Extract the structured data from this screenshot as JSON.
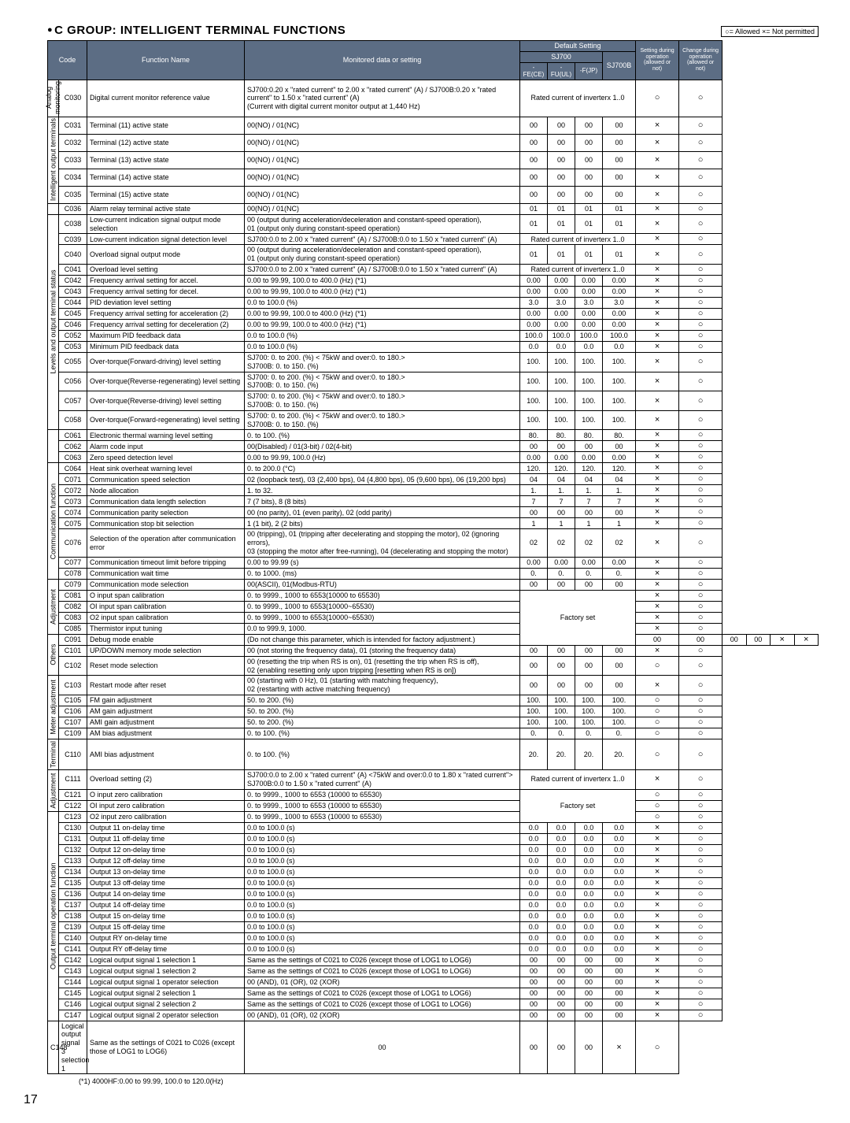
{
  "title": "C GROUP: INTELLIGENT TERMINAL FUNCTIONS",
  "legend": "○= Allowed  ×= Not permitted",
  "headers": {
    "code": "Code",
    "func": "Function Name",
    "mon": "Monitored data or setting",
    "defset": "Default Setting",
    "sj700": "SJ700",
    "sj700b": "SJ700B",
    "fece": "-FE(CE)",
    "fuul": "-FU(UL)",
    "fjp": "-F(JP)",
    "setting": "Setting during operation (allowed or not)",
    "change": "Change during operation (allowed or not)"
  },
  "categories": [
    {
      "label": "Analog<br>monitoring",
      "span": 1
    },
    {
      "label": "Intelligent output terminals",
      "span": 5
    },
    {
      "label": "",
      "span": 1
    },
    {
      "label": "Levels and output terminal status",
      "span": 15
    },
    {
      "label": "",
      "span": 3
    },
    {
      "label": "Communication function",
      "span": 9
    },
    {
      "label": "Adjustment",
      "span": 5
    },
    {
      "label": "Others",
      "span": 3
    },
    {
      "label": "Meter adjustment",
      "span": 5
    },
    {
      "label": "Terminal",
      "span": 1
    },
    {
      "label": "Adjustment",
      "span": 3
    },
    {
      "label": "Output terminal operation function",
      "span": 19
    }
  ],
  "rows": [
    {
      "code": "C030",
      "name": "Digital current monitor reference value",
      "mon": "SJ700:0.20 x \"rated current\" to 2.00 x \"rated current\" (A) / SJ700B:0.20 x \"rated current\" to 1.50 x \"rated current\" (A)\n(Current with digital current monitor output at 1,440 Hz)",
      "def": [
        "colspan:4",
        "Rated current of inverterx 1..0"
      ],
      "sj7b": "",
      "s": "○",
      "c": "○"
    },
    {
      "code": "C031",
      "name": "Terminal (11) active state",
      "mon": "00(NO) / 01(NC)",
      "def": [
        "00",
        "00",
        "00",
        "00"
      ],
      "s": "×",
      "c": "○"
    },
    {
      "code": "C032",
      "name": "Terminal (12) active state",
      "mon": "00(NO) / 01(NC)",
      "def": [
        "00",
        "00",
        "00",
        "00"
      ],
      "s": "×",
      "c": "○"
    },
    {
      "code": "C033",
      "name": "Terminal (13) active state",
      "mon": "00(NO) / 01(NC)",
      "def": [
        "00",
        "00",
        "00",
        "00"
      ],
      "s": "×",
      "c": "○"
    },
    {
      "code": "C034",
      "name": "Terminal (14) active state",
      "mon": "00(NO) / 01(NC)",
      "def": [
        "00",
        "00",
        "00",
        "00"
      ],
      "s": "×",
      "c": "○"
    },
    {
      "code": "C035",
      "name": "Terminal (15) active state",
      "mon": "00(NO) / 01(NC)",
      "def": [
        "00",
        "00",
        "00",
        "00"
      ],
      "s": "×",
      "c": "○"
    },
    {
      "code": "C036",
      "name": "Alarm relay terminal active state",
      "mon": "00(NO) / 01(NC)",
      "def": [
        "01",
        "01",
        "01",
        "01"
      ],
      "s": "×",
      "c": "○"
    },
    {
      "code": "C038",
      "name": "Low-current indication signal output mode selection",
      "mon": "00 (output during acceleration/deceleration and constant-speed operation),\n01 (output only during constant-speed operation)",
      "def": [
        "01",
        "01",
        "01",
        "01"
      ],
      "s": "×",
      "c": "○"
    },
    {
      "code": "C039",
      "name": "Low-current indication signal detection level",
      "mon": "SJ700:0.0 to 2.00 x \"rated current\" (A) / SJ700B:0.0 to 1.50 x \"rated current\" (A)",
      "def": [
        "colspan:4",
        "Rated current of inverterx 1..0"
      ],
      "s": "×",
      "c": "○"
    },
    {
      "code": "C040",
      "name": "Overload signal output mode",
      "mon": "00 (output during acceleration/deceleration and constant-speed operation),\n01 (output only during constant-speed operation)",
      "def": [
        "01",
        "01",
        "01",
        "01"
      ],
      "s": "×",
      "c": "○"
    },
    {
      "code": "C041",
      "name": "Overload level setting",
      "mon": "SJ700:0.0 to 2.00 x \"rated current\" (A) / SJ700B:0.0 to 1.50 x \"rated current\" (A)",
      "def": [
        "colspan:4",
        "Rated current of inverterx 1..0"
      ],
      "s": "×",
      "c": "○"
    },
    {
      "code": "C042",
      "name": "Frequency arrival setting for accel.",
      "mon": "0.00 to 99.99, 100.0 to 400.0 (Hz) (*1)",
      "def": [
        "0.00",
        "0.00",
        "0.00",
        "0.00"
      ],
      "s": "×",
      "c": "○"
    },
    {
      "code": "C043",
      "name": "Frequency arrival setting for decel.",
      "mon": "0.00 to 99.99, 100.0 to 400.0 (Hz) (*1)",
      "def": [
        "0.00",
        "0.00",
        "0.00",
        "0.00"
      ],
      "s": "×",
      "c": "○"
    },
    {
      "code": "C044",
      "name": "PID deviation level setting",
      "mon": "0.0 to 100.0 (%)",
      "def": [
        "3.0",
        "3.0",
        "3.0",
        "3.0"
      ],
      "s": "×",
      "c": "○"
    },
    {
      "code": "C045",
      "name": "Frequency arrival setting for acceleration (2)",
      "mon": "0.00 to 99.99, 100.0 to 400.0 (Hz) (*1)",
      "def": [
        "0.00",
        "0.00",
        "0.00",
        "0.00"
      ],
      "s": "×",
      "c": "○"
    },
    {
      "code": "C046",
      "name": "Frequency arrival setting for deceleration (2)",
      "mon": "0.00 to 99.99, 100.0 to 400.0 (Hz) (*1)",
      "def": [
        "0.00",
        "0.00",
        "0.00",
        "0.00"
      ],
      "s": "×",
      "c": "○"
    },
    {
      "code": "C052",
      "name": "Maximum PID feedback data",
      "mon": "0.0 to 100.0 (%)",
      "def": [
        "100.0",
        "100.0",
        "100.0",
        "100.0"
      ],
      "s": "×",
      "c": "○"
    },
    {
      "code": "C053",
      "name": "Minimum PID feedback data",
      "mon": "0.0 to 100.0 (%)",
      "def": [
        "0.0",
        "0.0",
        "0.0",
        "0.0"
      ],
      "s": "×",
      "c": "○"
    },
    {
      "code": "C055",
      "name": "Over-torque(Forward-driving) level setting",
      "mon": "SJ700: 0. to 200. (%) < 75kW and over:0. to 180.>\nSJ700B: 0. to 150. (%)",
      "def": [
        "100.",
        "100.",
        "100.",
        "100."
      ],
      "s": "×",
      "c": "○"
    },
    {
      "code": "C056",
      "name": "Over-torque(Reverse-regenerating) level setting",
      "mon": "SJ700: 0. to 200. (%) < 75kW and over:0. to 180.>\nSJ700B: 0. to 150. (%)",
      "def": [
        "100.",
        "100.",
        "100.",
        "100."
      ],
      "s": "×",
      "c": "○"
    },
    {
      "code": "C057",
      "name": "Over-torque(Reverse-driving) level setting",
      "mon": "SJ700: 0. to 200. (%) < 75kW and over:0. to 180.>\nSJ700B: 0. to 150. (%)",
      "def": [
        "100.",
        "100.",
        "100.",
        "100."
      ],
      "s": "×",
      "c": "○"
    },
    {
      "code": "C058",
      "name": "Over-torque(Forward-regenerating) level setting",
      "mon": "SJ700: 0. to 200. (%) < 75kW and over:0. to 180.>\nSJ700B: 0. to 150. (%)",
      "def": [
        "100.",
        "100.",
        "100.",
        "100."
      ],
      "s": "×",
      "c": "○"
    },
    {
      "code": "C061",
      "name": "Electronic thermal warning level setting",
      "mon": "0. to 100. (%)",
      "def": [
        "80.",
        "80.",
        "80.",
        "80."
      ],
      "s": "×",
      "c": "○"
    },
    {
      "code": "C062",
      "name": "Alarm code input",
      "mon": "00(Disabled) / 01(3-bit) / 02(4-bit)",
      "def": [
        "00",
        "00",
        "00",
        "00"
      ],
      "s": "×",
      "c": "○"
    },
    {
      "code": "C063",
      "name": "Zero speed detection level",
      "mon": "0.00 to 99.99, 100.0 (Hz)",
      "def": [
        "0.00",
        "0.00",
        "0.00",
        "0.00"
      ],
      "s": "×",
      "c": "○"
    },
    {
      "code": "C064",
      "name": "Heat sink overheat warning level",
      "mon": "0. to 200.0 (°C)",
      "def": [
        "120.",
        "120.",
        "120.",
        "120."
      ],
      "s": "×",
      "c": "○"
    },
    {
      "code": "C071",
      "name": "Communication speed selection",
      "mon": "02 (loopback test), 03 (2,400 bps), 04 (4,800 bps), 05 (9,600 bps), 06 (19,200 bps)",
      "def": [
        "04",
        "04",
        "04",
        "04"
      ],
      "s": "×",
      "c": "○"
    },
    {
      "code": "C072",
      "name": "Node allocation",
      "mon": "1. to 32.",
      "def": [
        "1.",
        "1.",
        "1.",
        "1."
      ],
      "s": "×",
      "c": "○"
    },
    {
      "code": "C073",
      "name": "Communication data length selection",
      "mon": "7 (7 bits), 8 (8 bits)",
      "def": [
        "7",
        "7",
        "7",
        "7"
      ],
      "s": "×",
      "c": "○"
    },
    {
      "code": "C074",
      "name": "Communication parity selection",
      "mon": "00 (no parity), 01 (even parity), 02 (odd parity)",
      "def": [
        "00",
        "00",
        "00",
        "00"
      ],
      "s": "×",
      "c": "○"
    },
    {
      "code": "C075",
      "name": "Communication stop bit selection",
      "mon": "1 (1 bit), 2 (2 bits)",
      "def": [
        "1",
        "1",
        "1",
        "1"
      ],
      "s": "×",
      "c": "○"
    },
    {
      "code": "C076",
      "name": "Selection of the operation after communication error",
      "mon": "00 (tripping), 01 (tripping after decelerating and stopping the motor), 02 (ignoring errors),\n03 (stopping the motor after free-running), 04 (decelerating and stopping the motor)",
      "def": [
        "02",
        "02",
        "02",
        "02"
      ],
      "s": "×",
      "c": "○"
    },
    {
      "code": "C077",
      "name": "Communication timeout limit before tripping",
      "mon": "0.00 to 99.99 (s)",
      "def": [
        "0.00",
        "0.00",
        "0.00",
        "0.00"
      ],
      "s": "×",
      "c": "○"
    },
    {
      "code": "C078",
      "name": "Communication wait time",
      "mon": "0. to 1000. (ms)",
      "def": [
        "0.",
        "0.",
        "0.",
        "0."
      ],
      "s": "×",
      "c": "○"
    },
    {
      "code": "C079",
      "name": "Communication mode selection",
      "mon": "00(ASCII), 01(Modbus-RTU)",
      "def": [
        "00",
        "00",
        "00",
        "00"
      ],
      "s": "×",
      "c": "○"
    },
    {
      "code": "C081",
      "name": "O input span calibration",
      "mon": "0. to 9999., 1000 to 6553(10000 to 65530)",
      "def": [
        "rowspan-group:5",
        "Factory set"
      ],
      "s": "×",
      "c": "○",
      "groupstart": true,
      "grouplen": 5,
      "grouptext": "Factory set"
    },
    {
      "code": "C082",
      "name": "OI input span calibration",
      "mon": "0. to 9999., 1000 to 6553(10000~65530)",
      "def": [
        "skip"
      ],
      "s": "×",
      "c": "○"
    },
    {
      "code": "C083",
      "name": "O2 input span calibration",
      "mon": "0. to 9999., 1000 to 6553(10000~65530)",
      "def": [
        "skip"
      ],
      "s": "×",
      "c": "○"
    },
    {
      "code": "C085",
      "name": "Thermistor input tuning",
      "mon": "0.0 to 999.9, 1000.",
      "def": [
        "skip"
      ],
      "s": "×",
      "c": "○"
    },
    {
      "code": "C091",
      "name": "Debug mode enable",
      "mon": "(Do not change this parameter, which is intended for factory adjustment.)",
      "def": [
        "00",
        "00",
        "00",
        "00"
      ],
      "s": "×",
      "c": "×"
    },
    {
      "code": "C101",
      "name": "UP/DOWN memory mode selection",
      "mon": "00 (not storing the frequency data), 01 (storing the frequency data)",
      "def": [
        "00",
        "00",
        "00",
        "00"
      ],
      "s": "×",
      "c": "○"
    },
    {
      "code": "C102",
      "name": "Reset mode selection",
      "mon": "00 (resetting the trip when RS is on), 01 (resetting the trip when RS is off),\n02 (enabling resetting only upon tripping [resetting when RS is on])",
      "def": [
        "00",
        "00",
        "00",
        "00"
      ],
      "s": "○",
      "c": "○"
    },
    {
      "code": "C103",
      "name": "Restart mode after reset",
      "mon": "00 (starting with 0 Hz), 01 (starting with matching frequency),\n02 (restarting with active matching frequency)",
      "def": [
        "00",
        "00",
        "00",
        "00"
      ],
      "s": "×",
      "c": "○"
    },
    {
      "code": "C105",
      "name": "FM gain adjustment",
      "mon": "50. to 200. (%)",
      "def": [
        "100.",
        "100.",
        "100.",
        "100."
      ],
      "s": "○",
      "c": "○"
    },
    {
      "code": "C106",
      "name": "AM gain adjustment",
      "mon": "50. to 200. (%)",
      "def": [
        "100.",
        "100.",
        "100.",
        "100."
      ],
      "s": "○",
      "c": "○"
    },
    {
      "code": "C107",
      "name": "AMI gain adjustment",
      "mon": "50. to 200. (%)",
      "def": [
        "100.",
        "100.",
        "100.",
        "100."
      ],
      "s": "○",
      "c": "○"
    },
    {
      "code": "C109",
      "name": "AM bias adjustment",
      "mon": "0. to 100. (%)",
      "def": [
        "0.",
        "0.",
        "0.",
        "0."
      ],
      "s": "○",
      "c": "○"
    },
    {
      "code": "C110",
      "name": "AMI bias adjustment",
      "mon": "0. to 100. (%)",
      "def": [
        "20.",
        "20.",
        "20.",
        "20."
      ],
      "s": "○",
      "c": "○"
    },
    {
      "code": "C111",
      "name": "Overload setting (2)",
      "mon": "SJ700:0.0 to 2.00 x \"rated current\" (A) <75kW and over:0.0 to 1.80 x \"rated current\">\nSJ700B:0.0 to 1.50 x \"rated current\" (A)",
      "def": [
        "colspan:4",
        "Rated current of inverterx 1..0"
      ],
      "s": "×",
      "c": "○"
    },
    {
      "code": "C121",
      "name": "O input zero calibration",
      "mon": "0. to 9999., 1000 to 6553 (10000 to 65530)",
      "def": [
        "rowspan-group:3"
      ],
      "s": "○",
      "c": "○",
      "groupstart": true,
      "grouplen": 3,
      "grouptext": "Factory set"
    },
    {
      "code": "C122",
      "name": "OI input zero calibration",
      "mon": "0. to 9999., 1000 to 6553 (10000 to 65530)",
      "def": [
        "skip"
      ],
      "s": "○",
      "c": "○"
    },
    {
      "code": "C123",
      "name": "O2 input zero calibration",
      "mon": "0. to 9999., 1000 to 6553 (10000 to 65530)",
      "def": [
        "skip"
      ],
      "s": "○",
      "c": "○"
    },
    {
      "code": "C130",
      "name": "Output 11 on-delay time",
      "mon": "0.0 to 100.0 (s)",
      "def": [
        "0.0",
        "0.0",
        "0.0",
        "0.0"
      ],
      "s": "×",
      "c": "○"
    },
    {
      "code": "C131",
      "name": "Output 11 off-delay time",
      "mon": "0.0 to 100.0 (s)",
      "def": [
        "0.0",
        "0.0",
        "0.0",
        "0.0"
      ],
      "s": "×",
      "c": "○"
    },
    {
      "code": "C132",
      "name": "Output 12 on-delay time",
      "mon": "0.0 to 100.0 (s)",
      "def": [
        "0.0",
        "0.0",
        "0.0",
        "0.0"
      ],
      "s": "×",
      "c": "○"
    },
    {
      "code": "C133",
      "name": "Output 12 off-delay time",
      "mon": "0.0 to 100.0 (s)",
      "def": [
        "0.0",
        "0.0",
        "0.0",
        "0.0"
      ],
      "s": "×",
      "c": "○"
    },
    {
      "code": "C134",
      "name": "Output 13 on-delay time",
      "mon": "0.0 to 100.0 (s)",
      "def": [
        "0.0",
        "0.0",
        "0.0",
        "0.0"
      ],
      "s": "×",
      "c": "○"
    },
    {
      "code": "C135",
      "name": "Output 13 off-delay time",
      "mon": "0.0 to 100.0 (s)",
      "def": [
        "0.0",
        "0.0",
        "0.0",
        "0.0"
      ],
      "s": "×",
      "c": "○"
    },
    {
      "code": "C136",
      "name": "Output 14 on-delay time",
      "mon": "0.0 to 100.0 (s)",
      "def": [
        "0.0",
        "0.0",
        "0.0",
        "0.0"
      ],
      "s": "×",
      "c": "○"
    },
    {
      "code": "C137",
      "name": "Output 14 off-delay time",
      "mon": "0.0 to 100.0 (s)",
      "def": [
        "0.0",
        "0.0",
        "0.0",
        "0.0"
      ],
      "s": "×",
      "c": "○"
    },
    {
      "code": "C138",
      "name": "Output 15 on-delay time",
      "mon": "0.0 to 100.0 (s)",
      "def": [
        "0.0",
        "0.0",
        "0.0",
        "0.0"
      ],
      "s": "×",
      "c": "○"
    },
    {
      "code": "C139",
      "name": "Output 15 off-delay time",
      "mon": "0.0 to 100.0 (s)",
      "def": [
        "0.0",
        "0.0",
        "0.0",
        "0.0"
      ],
      "s": "×",
      "c": "○"
    },
    {
      "code": "C140",
      "name": "Output RY on-delay time",
      "mon": "0.0 to 100.0 (s)",
      "def": [
        "0.0",
        "0.0",
        "0.0",
        "0.0"
      ],
      "s": "×",
      "c": "○"
    },
    {
      "code": "C141",
      "name": "Output RY off-delay time",
      "mon": "0.0 to 100.0 (s)",
      "def": [
        "0.0",
        "0.0",
        "0.0",
        "0.0"
      ],
      "s": "×",
      "c": "○"
    },
    {
      "code": "C142",
      "name": "Logical output signal 1 selection 1",
      "mon": "Same as the settings of C021 to C026 (except those of LOG1 to LOG6)",
      "def": [
        "00",
        "00",
        "00",
        "00"
      ],
      "s": "×",
      "c": "○"
    },
    {
      "code": "C143",
      "name": "Logical output signal 1 selection 2",
      "mon": "Same as the settings of C021 to C026 (except those of LOG1 to LOG6)",
      "def": [
        "00",
        "00",
        "00",
        "00"
      ],
      "s": "×",
      "c": "○"
    },
    {
      "code": "C144",
      "name": "Logical output signal 1 operator selection",
      "mon": "00 (AND), 01 (OR), 02 (XOR)",
      "def": [
        "00",
        "00",
        "00",
        "00"
      ],
      "s": "×",
      "c": "○"
    },
    {
      "code": "C145",
      "name": "Logical output signal 2 selection 1",
      "mon": "Same as the settings of C021 to C026 (except those of LOG1 to LOG6)",
      "def": [
        "00",
        "00",
        "00",
        "00"
      ],
      "s": "×",
      "c": "○"
    },
    {
      "code": "C146",
      "name": "Logical output signal 2 selection 2",
      "mon": "Same as the settings of C021 to C026 (except those of LOG1 to LOG6)",
      "def": [
        "00",
        "00",
        "00",
        "00"
      ],
      "s": "×",
      "c": "○"
    },
    {
      "code": "C147",
      "name": "Logical output signal 2 operator selection",
      "mon": "00 (AND), 01 (OR), 02 (XOR)",
      "def": [
        "00",
        "00",
        "00",
        "00"
      ],
      "s": "×",
      "c": "○"
    },
    {
      "code": "C148",
      "name": "Logical output signal 3 selection 1",
      "mon": "Same as the settings of C021 to C026 (except those of LOG1 to LOG6)",
      "def": [
        "00",
        "00",
        "00",
        "00"
      ],
      "s": "×",
      "c": "○"
    }
  ],
  "footnote": "(*1) 4000HF:0.00 to 99.99, 100.0 to 120.0(Hz)",
  "pagenum": "17"
}
